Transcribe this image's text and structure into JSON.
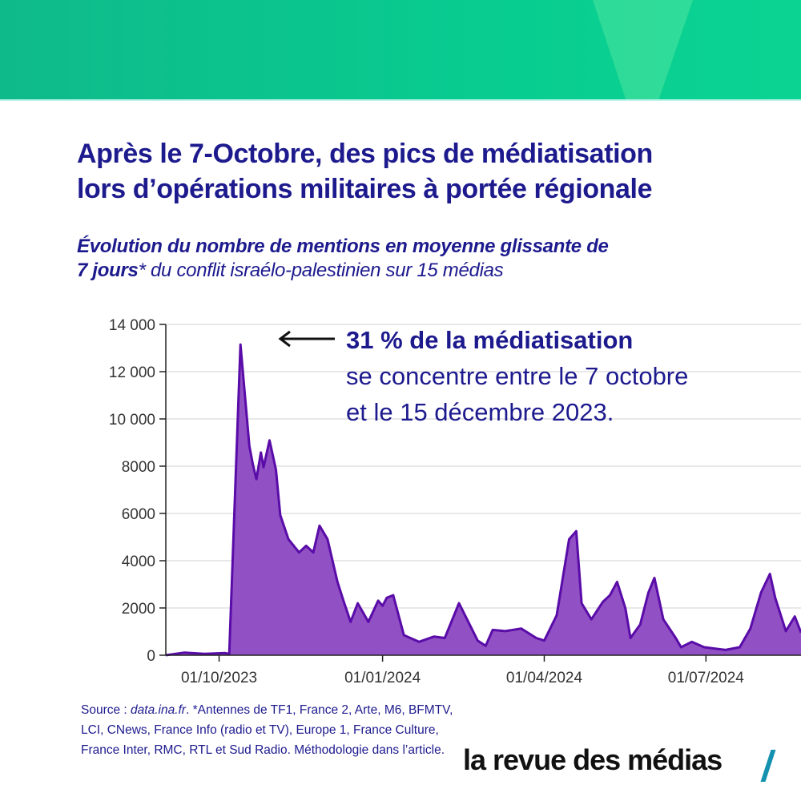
{
  "header": {
    "title_line1": "Après le 7-Octobre, des pics de médiatisation",
    "title_line2": "lors d’opérations militaires à portée régionale"
  },
  "subtitle": {
    "line1": "Évolution du nombre de mentions en moyenne glissante de",
    "bold2": "7 jours",
    "rest2": "* du conflit israélo-palestinien sur 15 médias"
  },
  "annotation": {
    "bold": "31 % de la médiatisation",
    "line2": "se concentre entre le 7 octobre",
    "line3": "et le 15 décembre 2023."
  },
  "footer": {
    "source_label": "Source : ",
    "source_site": "data.ina.fr",
    "source_rest": ". *Antennes de TF1, France 2, Arte, M6, BFMTV, LCI, CNews, France Info (radio et TV), Europe 1, France Culture, France Inter, RMC, RTL et Sud Radio. Méthodologie dans l’article.",
    "logo": "la revue des médias"
  },
  "colors": {
    "title": "#1d1a8e",
    "area": "#9150c4",
    "line": "#5a0ca8",
    "banner": "#08cc90",
    "logo_slash": "#1591b0"
  },
  "chart_data": {
    "type": "area",
    "title": "",
    "xlabel": "",
    "ylabel": "",
    "x_unit": "days since 01/10/2023",
    "xlim": [
      -30,
      327.5
    ],
    "ylim": [
      0,
      14000
    ],
    "grid": true,
    "y_ticks": [
      {
        "value": 0,
        "label": "0"
      },
      {
        "value": 2000,
        "label": "2000"
      },
      {
        "value": 4000,
        "label": "4000"
      },
      {
        "value": 6000,
        "label": "6000"
      },
      {
        "value": 8000,
        "label": "8000"
      },
      {
        "value": 10000,
        "label": "10 000"
      },
      {
        "value": 12000,
        "label": "12 000"
      },
      {
        "value": 14000,
        "label": "14 000"
      }
    ],
    "x_ticks": [
      {
        "value": 0,
        "label": "01/10/2023"
      },
      {
        "value": 92,
        "label": "01/01/2024"
      },
      {
        "value": 183,
        "label": "01/04/2024"
      },
      {
        "value": 274,
        "label": "01/07/2024"
      }
    ],
    "series": [
      {
        "name": "Mentions (moyenne glissante 7 jours)",
        "x": [
          -30,
          -19.5,
          -8,
          3.4,
          5.7,
          12,
          17,
          19,
          21,
          23.5,
          25,
          28.4,
          32,
          34.4,
          39,
          45,
          49,
          53,
          56.5,
          61,
          66.6,
          70,
          74,
          78,
          84,
          89.5,
          92,
          94.4,
          98,
          104,
          112.5,
          121,
          127,
          135,
          138,
          145.5,
          150,
          154,
          161,
          170,
          178.5,
          183,
          190,
          197,
          201,
          204,
          209.5,
          216,
          220,
          224,
          228.7,
          231.5,
          237,
          241.6,
          245,
          250,
          257,
          260,
          266,
          273,
          285,
          293,
          299,
          305,
          310,
          313,
          319,
          324,
          327.5
        ],
        "y": [
          0,
          113,
          56,
          90,
          56,
          13150,
          8860,
          8070,
          7450,
          8580,
          7960,
          9090,
          7850,
          5930,
          4910,
          4350,
          4630,
          4350,
          5480,
          4910,
          3100,
          2310,
          1410,
          2200,
          1410,
          2310,
          2090,
          2430,
          2540,
          850,
          565,
          790,
          730,
          2200,
          1750,
          620,
          395,
          1070,
          1020,
          1130,
          730,
          620,
          1690,
          4910,
          5250,
          2200,
          1520,
          2260,
          2540,
          3100,
          1980,
          730,
          1300,
          2650,
          3270,
          1520,
          730,
          340,
          565,
          340,
          225,
          340,
          1130,
          2650,
          3440,
          2430,
          1020,
          1640,
          960
        ]
      }
    ]
  }
}
